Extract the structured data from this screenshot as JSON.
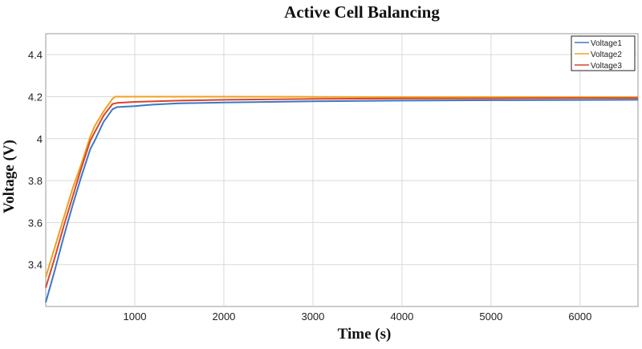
{
  "chart_data": {
    "type": "line",
    "title": "Active Cell Balancing",
    "xlabel": "Time (s)",
    "ylabel": "Voltage (V)",
    "xlim": [
      0,
      6650
    ],
    "ylim": [
      3.2,
      4.5
    ],
    "xticks": [
      1000,
      2000,
      3000,
      4000,
      5000,
      6000
    ],
    "xtick_labels": [
      "1000",
      "2000",
      "3000",
      "4000",
      "5000",
      "6000"
    ],
    "yticks": [
      3.4,
      3.6,
      3.8,
      4.0,
      4.2,
      4.4
    ],
    "ytick_labels": [
      "3.4",
      "3.6",
      "3.8",
      "4",
      "4.2",
      "4.4"
    ],
    "grid": true,
    "legend": {
      "location": "top-right",
      "entries": [
        "Voltage1",
        "Voltage2",
        "Voltage3"
      ]
    },
    "series": [
      {
        "name": "Voltage1",
        "color": "#3a78c9",
        "x": [
          0,
          100,
          200,
          300,
          400,
          500,
          550,
          650,
          750,
          800,
          1000,
          1200,
          1500,
          2000,
          3000,
          4000,
          5000,
          6000,
          6650
        ],
        "y": [
          3.22,
          3.37,
          3.53,
          3.68,
          3.82,
          3.95,
          3.99,
          4.08,
          4.14,
          4.15,
          4.155,
          4.162,
          4.168,
          4.172,
          4.178,
          4.181,
          4.183,
          4.184,
          4.185
        ]
      },
      {
        "name": "Voltage2",
        "color": "#f0a020",
        "x": [
          0,
          100,
          200,
          300,
          400,
          500,
          550,
          650,
          750,
          780,
          1000,
          2000,
          3000,
          4000,
          5000,
          6000,
          6650
        ],
        "y": [
          3.34,
          3.48,
          3.62,
          3.76,
          3.88,
          4.01,
          4.06,
          4.13,
          4.19,
          4.2,
          4.2,
          4.2,
          4.199,
          4.198,
          4.198,
          4.198,
          4.198
        ]
      },
      {
        "name": "Voltage3",
        "color": "#d9452b",
        "x": [
          0,
          100,
          200,
          300,
          400,
          500,
          550,
          650,
          750,
          800,
          1000,
          1500,
          2000,
          3000,
          4000,
          5000,
          6000,
          6650
        ],
        "y": [
          3.29,
          3.43,
          3.58,
          3.72,
          3.86,
          3.99,
          4.03,
          4.11,
          4.165,
          4.17,
          4.175,
          4.181,
          4.185,
          4.189,
          4.191,
          4.192,
          4.193,
          4.193
        ]
      }
    ]
  }
}
